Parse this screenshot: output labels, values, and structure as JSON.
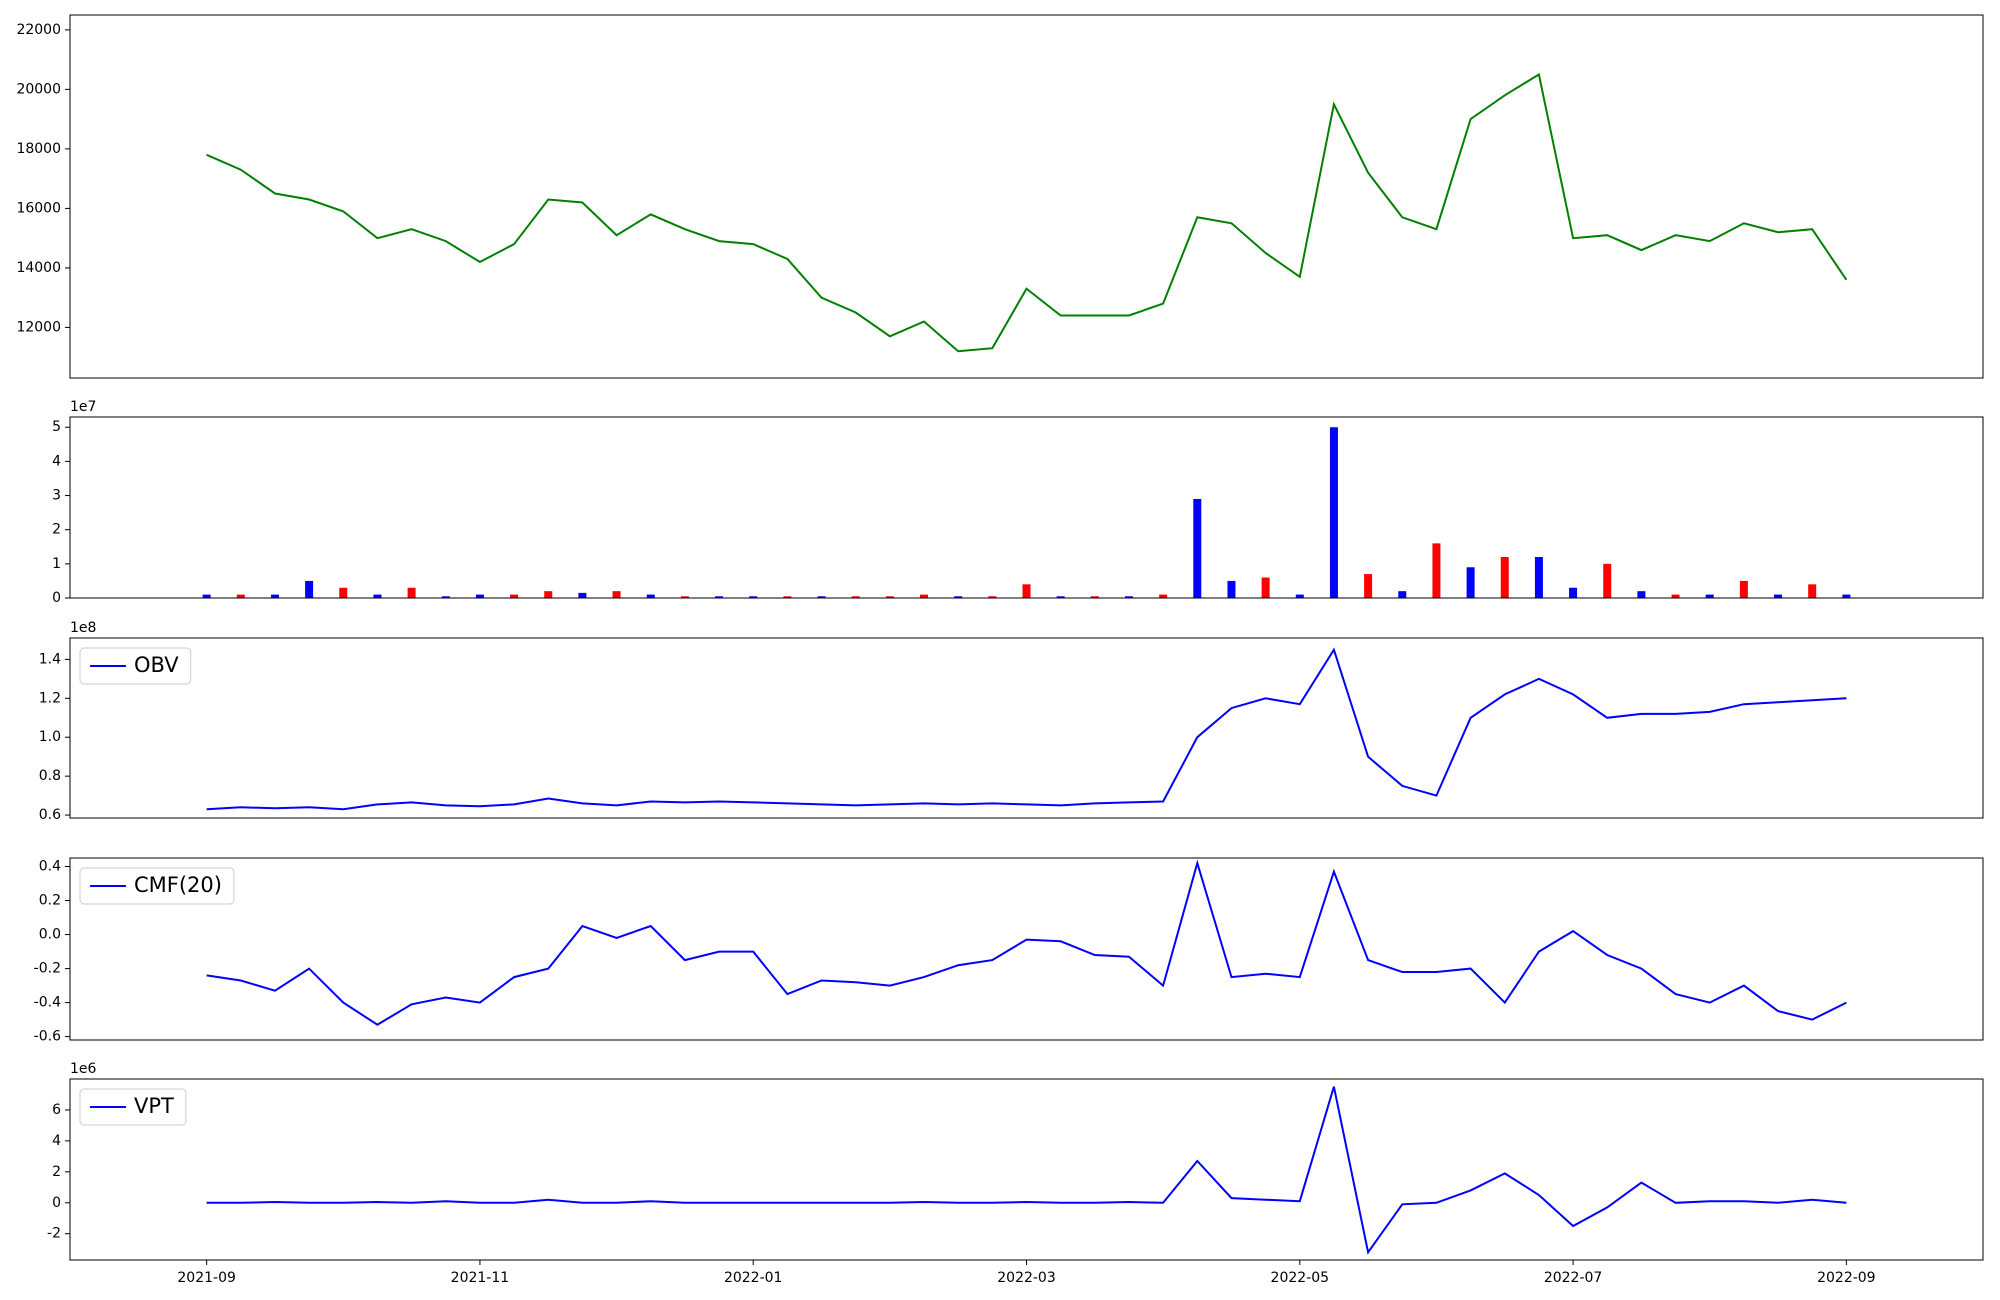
{
  "chart_data": [
    {
      "type": "line",
      "xlim": [
        "2021-08",
        "2022-10"
      ],
      "x": [
        "2021-09",
        "2021-09",
        "2021-09",
        "2021-09",
        "2021-10",
        "2021-10",
        "2021-10",
        "2021-10",
        "2021-11",
        "2021-11",
        "2021-11",
        "2021-11",
        "2021-12",
        "2021-12",
        "2021-12",
        "2021-12",
        "2022-01",
        "2022-01",
        "2022-01",
        "2022-01",
        "2022-02",
        "2022-02",
        "2022-02",
        "2022-02",
        "2022-03",
        "2022-03",
        "2022-03",
        "2022-03",
        "2022-04",
        "2022-04",
        "2022-04",
        "2022-04",
        "2022-05",
        "2022-05",
        "2022-05",
        "2022-05",
        "2022-06",
        "2022-06",
        "2022-06",
        "2022-06",
        "2022-07",
        "2022-07",
        "2022-07",
        "2022-07",
        "2022-08",
        "2022-08",
        "2022-08",
        "2022-08",
        "2022-09"
      ],
      "series": [
        {
          "color": "green",
          "values": [
            17800,
            17300,
            16500,
            16300,
            15900,
            15000,
            15300,
            14900,
            14200,
            14800,
            16300,
            16200,
            15100,
            15800,
            15300,
            14900,
            14800,
            14300,
            13000,
            12500,
            11700,
            12200,
            11200,
            11300,
            13300,
            12400,
            12400,
            12400,
            12800,
            15700,
            15500,
            14500,
            13700,
            19500,
            17200,
            15700,
            15300,
            19000,
            19800,
            20500,
            15000,
            15100,
            14600,
            15100,
            14900,
            15500,
            15200,
            15300,
            13600
          ]
        }
      ],
      "ylim": [
        10300,
        22500
      ],
      "yticks": [
        12000,
        14000,
        16000,
        18000,
        20000,
        22000
      ]
    },
    {
      "type": "bar",
      "xlim": [
        "2021-08",
        "2022-10"
      ],
      "y_offset_label": "1e7",
      "x": [
        "2021-09",
        "2021-09",
        "2021-09",
        "2021-09",
        "2021-10",
        "2021-10",
        "2021-10",
        "2021-10",
        "2021-11",
        "2021-11",
        "2021-11",
        "2021-11",
        "2021-12",
        "2021-12",
        "2021-12",
        "2021-12",
        "2022-01",
        "2022-01",
        "2022-01",
        "2022-01",
        "2022-02",
        "2022-02",
        "2022-02",
        "2022-02",
        "2022-03",
        "2022-03",
        "2022-03",
        "2022-03",
        "2022-04",
        "2022-04",
        "2022-04",
        "2022-04",
        "2022-05",
        "2022-05",
        "2022-05",
        "2022-05",
        "2022-06",
        "2022-06",
        "2022-06",
        "2022-06",
        "2022-07",
        "2022-07",
        "2022-07",
        "2022-07",
        "2022-08",
        "2022-08",
        "2022-08",
        "2022-08",
        "2022-09"
      ],
      "values": [
        0.1,
        0.1,
        0.1,
        0.5,
        0.3,
        0.1,
        0.3,
        0.05,
        0.1,
        0.1,
        0.2,
        0.15,
        0.2,
        0.1,
        0.05,
        0.05,
        0.05,
        0.05,
        0.05,
        0.05,
        0.05,
        0.1,
        0.05,
        0.05,
        0.4,
        0.05,
        0.05,
        0.05,
        0.1,
        2.9,
        0.5,
        0.6,
        0.1,
        5.0,
        0.7,
        0.2,
        1.6,
        0.9,
        1.2,
        1.2,
        0.3,
        1.0,
        0.2,
        0.1,
        0.1,
        0.5,
        0.1,
        0.4,
        0.1
      ],
      "colors": [
        "blue",
        "red",
        "blue",
        "blue",
        "red",
        "blue",
        "red",
        "blue",
        "blue",
        "red",
        "red",
        "blue",
        "red",
        "blue",
        "red",
        "blue",
        "blue",
        "red",
        "blue",
        "red",
        "red",
        "red",
        "blue",
        "red",
        "red",
        "blue",
        "red",
        "blue",
        "red",
        "blue",
        "blue",
        "red",
        "blue",
        "blue",
        "red",
        "blue",
        "red",
        "blue",
        "red",
        "blue",
        "blue",
        "red",
        "blue",
        "red",
        "blue",
        "red",
        "blue",
        "red",
        "blue"
      ],
      "ylim": [
        0,
        5.3
      ],
      "yticks": [
        0,
        1,
        2,
        3,
        4,
        5
      ]
    },
    {
      "type": "line",
      "xlim": [
        "2021-08",
        "2022-10"
      ],
      "y_offset_label": "1e8",
      "legend": "upper left",
      "x": [
        "2021-09",
        "2021-09",
        "2021-09",
        "2021-09",
        "2021-10",
        "2021-10",
        "2021-10",
        "2021-10",
        "2021-11",
        "2021-11",
        "2021-11",
        "2021-11",
        "2021-12",
        "2021-12",
        "2021-12",
        "2021-12",
        "2022-01",
        "2022-01",
        "2022-01",
        "2022-01",
        "2022-02",
        "2022-02",
        "2022-02",
        "2022-02",
        "2022-03",
        "2022-03",
        "2022-03",
        "2022-03",
        "2022-04",
        "2022-04",
        "2022-04",
        "2022-04",
        "2022-05",
        "2022-05",
        "2022-05",
        "2022-05",
        "2022-06",
        "2022-06",
        "2022-06",
        "2022-06",
        "2022-07",
        "2022-07",
        "2022-07",
        "2022-07",
        "2022-08",
        "2022-08",
        "2022-08",
        "2022-08",
        "2022-09"
      ],
      "series": [
        {
          "name": "OBV",
          "color": "blue",
          "values": [
            0.63,
            0.64,
            0.635,
            0.64,
            0.63,
            0.655,
            0.665,
            0.65,
            0.645,
            0.655,
            0.685,
            0.66,
            0.65,
            0.67,
            0.665,
            0.67,
            0.665,
            0.66,
            0.655,
            0.65,
            0.655,
            0.66,
            0.655,
            0.66,
            0.655,
            0.65,
            0.66,
            0.665,
            0.67,
            1.0,
            1.15,
            1.2,
            1.17,
            1.45,
            0.9,
            0.75,
            0.7,
            1.1,
            1.22,
            1.3,
            1.22,
            1.1,
            1.12,
            1.12,
            1.13,
            1.17,
            1.18,
            1.19,
            1.2
          ]
        }
      ],
      "ylim": [
        0.585,
        1.51
      ],
      "yticks": [
        0.6,
        0.8,
        {
          "value": 1,
          "label": "1.0"
        },
        1.2,
        1.4
      ]
    },
    {
      "type": "line",
      "xlim": [
        "2021-08",
        "2022-10"
      ],
      "legend": "upper left",
      "x": [
        "2021-09",
        "2021-09",
        "2021-09",
        "2021-09",
        "2021-10",
        "2021-10",
        "2021-10",
        "2021-10",
        "2021-11",
        "2021-11",
        "2021-11",
        "2021-11",
        "2021-12",
        "2021-12",
        "2021-12",
        "2021-12",
        "2022-01",
        "2022-01",
        "2022-01",
        "2022-01",
        "2022-02",
        "2022-02",
        "2022-02",
        "2022-02",
        "2022-03",
        "2022-03",
        "2022-03",
        "2022-03",
        "2022-04",
        "2022-04",
        "2022-04",
        "2022-04",
        "2022-05",
        "2022-05",
        "2022-05",
        "2022-05",
        "2022-06",
        "2022-06",
        "2022-06",
        "2022-06",
        "2022-07",
        "2022-07",
        "2022-07",
        "2022-07",
        "2022-08",
        "2022-08",
        "2022-08",
        "2022-08",
        "2022-09"
      ],
      "series": [
        {
          "name": "CMF(20)",
          "color": "blue",
          "values": [
            -0.24,
            -0.27,
            -0.33,
            -0.2,
            -0.4,
            -0.53,
            -0.41,
            -0.37,
            -0.4,
            -0.25,
            -0.2,
            0.05,
            -0.02,
            0.05,
            -0.15,
            -0.1,
            -0.1,
            -0.35,
            -0.27,
            -0.28,
            -0.3,
            -0.25,
            -0.18,
            -0.15,
            -0.03,
            -0.04,
            -0.12,
            -0.13,
            -0.3,
            0.42,
            -0.25,
            -0.23,
            -0.25,
            0.37,
            -0.15,
            -0.22,
            -0.22,
            -0.2,
            -0.4,
            -0.1,
            0.02,
            -0.12,
            -0.2,
            -0.35,
            -0.4,
            -0.3,
            -0.45,
            -0.5,
            -0.4
          ]
        }
      ],
      "ylim": [
        -0.62,
        0.45
      ],
      "yticks": [
        -0.6,
        -0.4,
        -0.2,
        {
          "value": 0,
          "label": "0.0"
        },
        0.2,
        0.4
      ]
    },
    {
      "type": "line",
      "xlim": [
        "2021-08",
        "2022-10"
      ],
      "y_offset_label": "1e6",
      "legend": "upper left",
      "x": [
        "2021-09",
        "2021-09",
        "2021-09",
        "2021-09",
        "2021-10",
        "2021-10",
        "2021-10",
        "2021-10",
        "2021-11",
        "2021-11",
        "2021-11",
        "2021-11",
        "2021-12",
        "2021-12",
        "2021-12",
        "2021-12",
        "2022-01",
        "2022-01",
        "2022-01",
        "2022-01",
        "2022-02",
        "2022-02",
        "2022-02",
        "2022-02",
        "2022-03",
        "2022-03",
        "2022-03",
        "2022-03",
        "2022-04",
        "2022-04",
        "2022-04",
        "2022-04",
        "2022-05",
        "2022-05",
        "2022-05",
        "2022-05",
        "2022-06",
        "2022-06",
        "2022-06",
        "2022-06",
        "2022-07",
        "2022-07",
        "2022-07",
        "2022-07",
        "2022-08",
        "2022-08",
        "2022-08",
        "2022-08",
        "2022-09"
      ],
      "series": [
        {
          "name": "VPT",
          "color": "blue",
          "values": [
            0,
            0,
            0.05,
            0,
            0,
            0.05,
            0,
            0.1,
            0,
            0,
            0.2,
            0,
            0,
            0.1,
            0,
            0,
            0,
            0,
            0,
            0,
            0,
            0.05,
            0,
            0,
            0.05,
            0,
            0,
            0.05,
            0,
            2.7,
            0.3,
            0.2,
            0.1,
            7.5,
            -3.2,
            -0.1,
            0,
            0.8,
            1.9,
            0.5,
            -1.5,
            -0.3,
            1.3,
            0,
            0.1,
            0.1,
            0,
            0.2,
            0
          ]
        }
      ],
      "ylim": [
        -3.7,
        8
      ],
      "yticks": [
        -2,
        0,
        2,
        4,
        6
      ],
      "xticks": [
        "2021-09",
        "2021-11",
        "2022-01",
        "2022-03",
        "2022-05",
        "2022-07",
        "2022-09"
      ]
    }
  ]
}
